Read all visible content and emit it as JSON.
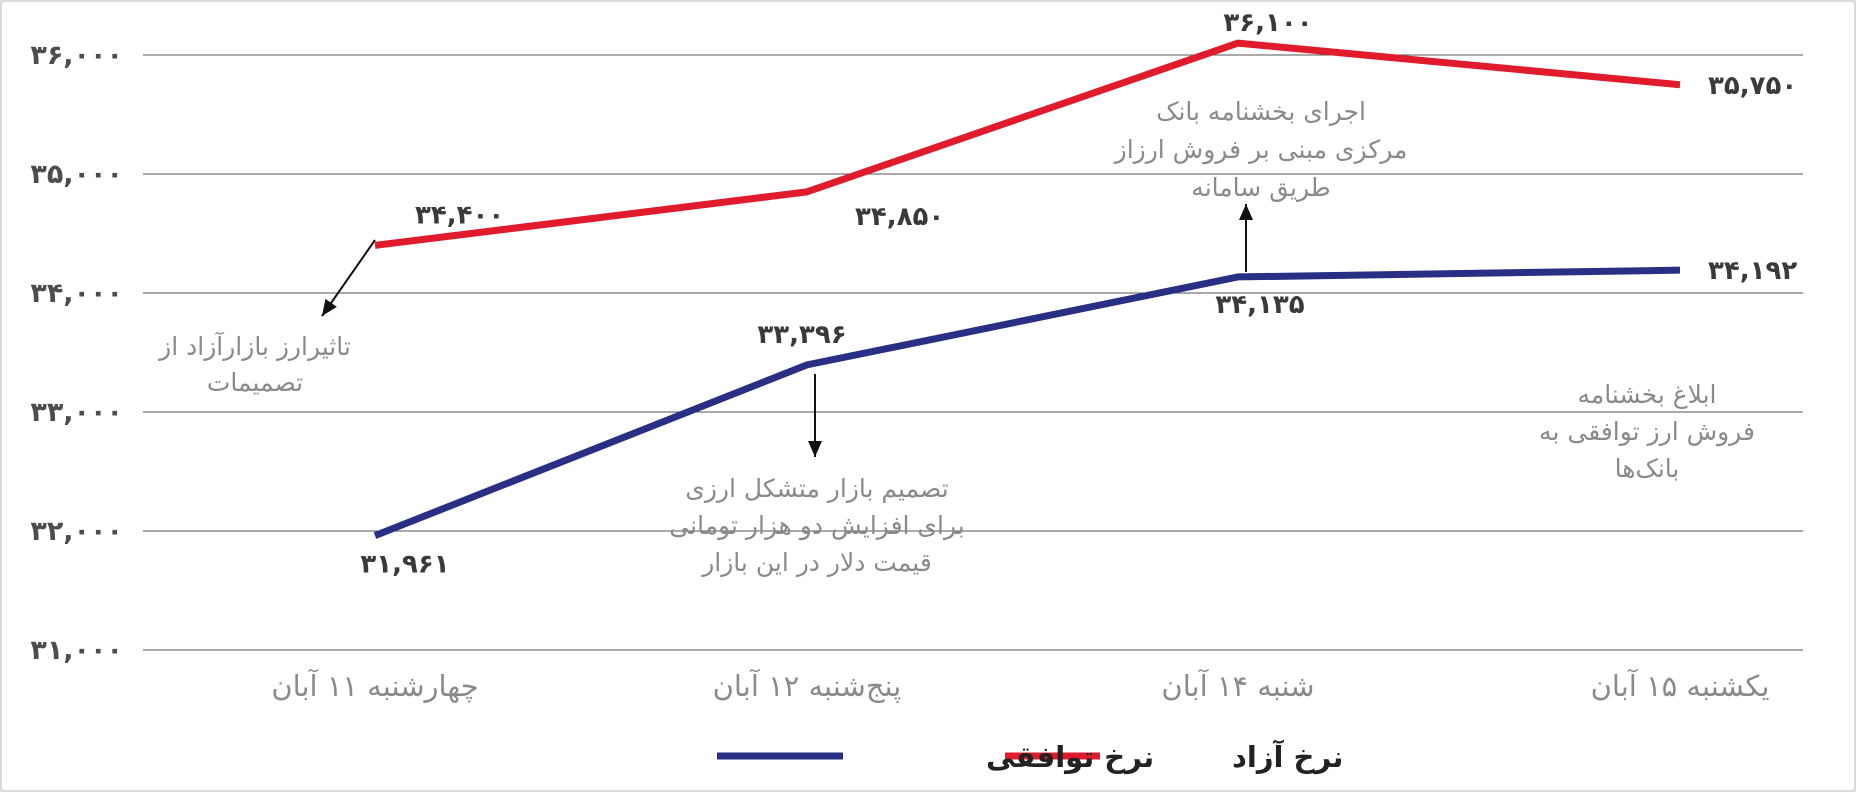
{
  "chart_data": {
    "type": "line",
    "categories": [
      "چهارشنبه ۱۱ آبان",
      "پنج‌شنبه ۱۲ آبان",
      "شنبه ۱۴ آبان",
      "یکشنبه ۱۵ آبان"
    ],
    "ylim": [
      31000,
      36500
    ],
    "yticks": [
      31000,
      32000,
      33000,
      34000,
      35000,
      36000
    ],
    "ytick_labels": [
      "۳۱,۰۰۰",
      "۳۲,۰۰۰",
      "۳۳,۰۰۰",
      "۳۴,۰۰۰",
      "۳۵,۰۰۰",
      "۳۶,۰۰۰"
    ],
    "grid": true,
    "legend_position": "bottom-center",
    "series": [
      {
        "name": "نرخ آزاد",
        "color": "#e01b2c",
        "values": [
          34400,
          34850,
          36100,
          35750
        ],
        "labels": [
          "۳۴,۴۰۰",
          "۳۴,۸۵۰",
          "۳۶,۱۰۰",
          "۳۵,۷۵۰"
        ]
      },
      {
        "name": "نرخ توافقی",
        "color": "#2a2f86",
        "values": [
          31961,
          33396,
          34135,
          34192
        ],
        "labels": [
          "۳۱,۹۶۱",
          "۳۳,۳۹۶",
          "۳۴,۱۳۵",
          "۳۴,۱۹۲"
        ]
      }
    ],
    "annotations": [
      {
        "lines": [
          "تاثیرارز بازارآزاد از",
          "تصمیمات"
        ]
      },
      {
        "lines": [
          "تصمیم بازار متشکل ارزی",
          "برای افزایش دو هزار تومانی",
          "قیمت دلار در این بازار"
        ]
      },
      {
        "lines": [
          "اجرای بخشنامه بانک",
          "مرکزی مبنی بر فروش ارزاز",
          "طریق سامانه"
        ]
      },
      {
        "lines": [
          "ابلاغ بخشنامه",
          "فروش ارز توافقی به",
          "بانک‌ها"
        ]
      }
    ]
  }
}
